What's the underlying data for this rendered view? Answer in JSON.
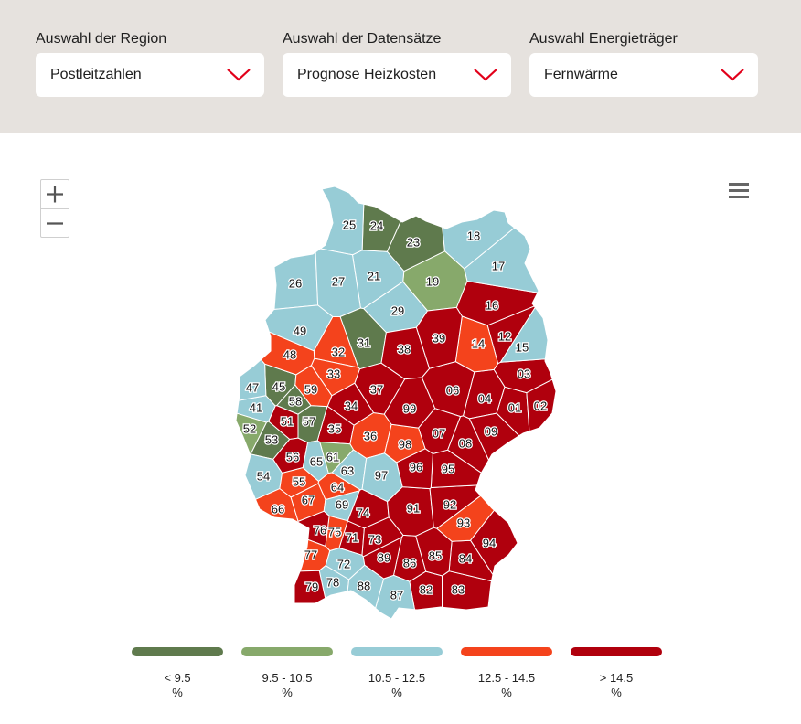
{
  "filters": [
    {
      "label": "Auswahl der Region",
      "value": "Postleitzahlen"
    },
    {
      "label": "Auswahl der Datensätze",
      "value": "Prognose Heizkosten"
    },
    {
      "label": "Auswahl Energieträger",
      "value": "Fernwärme"
    }
  ],
  "colors": {
    "lt95": "#5f7a4d",
    "r95_105": "#87a96b",
    "r105_125": "#97ccd6",
    "r125_145": "#f4431c",
    "gt145": "#b0000d",
    "accent": "#e2001a"
  },
  "legend": [
    {
      "range": "< 9.5",
      "unit": "%",
      "color": "#5f7a4d"
    },
    {
      "range": "9.5 - 10.5",
      "unit": "%",
      "color": "#87a96b"
    },
    {
      "range": "10.5 - 12.5",
      "unit": "%",
      "color": "#97ccd6"
    },
    {
      "range": "12.5 - 14.5",
      "unit": "%",
      "color": "#f4431c"
    },
    {
      "range": "> 14.5",
      "unit": "%",
      "color": "#b0000d"
    }
  ],
  "regions": [
    {
      "code": "01",
      "class": "gt145"
    },
    {
      "code": "02",
      "class": "gt145"
    },
    {
      "code": "03",
      "class": "gt145"
    },
    {
      "code": "04",
      "class": "gt145"
    },
    {
      "code": "06",
      "class": "gt145"
    },
    {
      "code": "07",
      "class": "gt145"
    },
    {
      "code": "08",
      "class": "gt145"
    },
    {
      "code": "09",
      "class": "gt145"
    },
    {
      "code": "12",
      "class": "gt145"
    },
    {
      "code": "14",
      "class": "r125_145"
    },
    {
      "code": "15",
      "class": "r105_125"
    },
    {
      "code": "16",
      "class": "gt145"
    },
    {
      "code": "17",
      "class": "r105_125"
    },
    {
      "code": "18",
      "class": "r105_125"
    },
    {
      "code": "19",
      "class": "r95_105"
    },
    {
      "code": "21",
      "class": "r105_125"
    },
    {
      "code": "23",
      "class": "lt95"
    },
    {
      "code": "24",
      "class": "lt95"
    },
    {
      "code": "25",
      "class": "r105_125"
    },
    {
      "code": "26",
      "class": "r105_125"
    },
    {
      "code": "27",
      "class": "r105_125"
    },
    {
      "code": "29",
      "class": "r105_125"
    },
    {
      "code": "31",
      "class": "lt95"
    },
    {
      "code": "32",
      "class": "r125_145"
    },
    {
      "code": "33",
      "class": "r125_145"
    },
    {
      "code": "34",
      "class": "gt145"
    },
    {
      "code": "35",
      "class": "gt145"
    },
    {
      "code": "36",
      "class": "r125_145"
    },
    {
      "code": "37",
      "class": "gt145"
    },
    {
      "code": "38",
      "class": "gt145"
    },
    {
      "code": "39",
      "class": "gt145"
    },
    {
      "code": "41",
      "class": "r105_125"
    },
    {
      "code": "45",
      "class": "lt95"
    },
    {
      "code": "47",
      "class": "r105_125"
    },
    {
      "code": "48",
      "class": "r125_145"
    },
    {
      "code": "49",
      "class": "r105_125"
    },
    {
      "code": "51",
      "class": "gt145"
    },
    {
      "code": "52",
      "class": "r95_105"
    },
    {
      "code": "53",
      "class": "lt95"
    },
    {
      "code": "54",
      "class": "r105_125"
    },
    {
      "code": "55",
      "class": "r125_145"
    },
    {
      "code": "56",
      "class": "gt145"
    },
    {
      "code": "57",
      "class": "lt95"
    },
    {
      "code": "58",
      "class": "lt95"
    },
    {
      "code": "59",
      "class": "r125_145"
    },
    {
      "code": "61",
      "class": "r95_105"
    },
    {
      "code": "63",
      "class": "r105_125"
    },
    {
      "code": "64",
      "class": "r125_145"
    },
    {
      "code": "65",
      "class": "r105_125"
    },
    {
      "code": "66",
      "class": "r125_145"
    },
    {
      "code": "67",
      "class": "r125_145"
    },
    {
      "code": "69",
      "class": "r105_125"
    },
    {
      "code": "71",
      "class": "gt145"
    },
    {
      "code": "72",
      "class": "r105_125"
    },
    {
      "code": "73",
      "class": "gt145"
    },
    {
      "code": "74",
      "class": "gt145"
    },
    {
      "code": "75",
      "class": "r125_145"
    },
    {
      "code": "76",
      "class": "gt145"
    },
    {
      "code": "77",
      "class": "r125_145"
    },
    {
      "code": "78",
      "class": "r105_125"
    },
    {
      "code": "79",
      "class": "gt145"
    },
    {
      "code": "82",
      "class": "gt145"
    },
    {
      "code": "83",
      "class": "gt145"
    },
    {
      "code": "84",
      "class": "gt145"
    },
    {
      "code": "85",
      "class": "gt145"
    },
    {
      "code": "86",
      "class": "gt145"
    },
    {
      "code": "87",
      "class": "r105_125"
    },
    {
      "code": "88",
      "class": "r105_125"
    },
    {
      "code": "89",
      "class": "gt145"
    },
    {
      "code": "91",
      "class": "gt145"
    },
    {
      "code": "92",
      "class": "gt145"
    },
    {
      "code": "93",
      "class": "r125_145"
    },
    {
      "code": "94",
      "class": "gt145"
    },
    {
      "code": "95",
      "class": "gt145"
    },
    {
      "code": "96",
      "class": "gt145"
    },
    {
      "code": "97",
      "class": "r105_125"
    },
    {
      "code": "98",
      "class": "r125_145"
    },
    {
      "code": "99",
      "class": "gt145"
    }
  ]
}
